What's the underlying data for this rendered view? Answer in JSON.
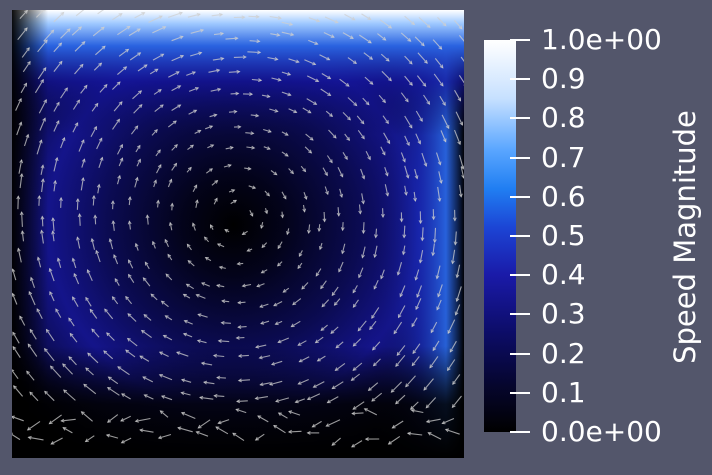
{
  "colors": {
    "background": "#53566b",
    "colormap": [
      "#000000",
      "#0a0a4e",
      "#1a1a96",
      "#1a4fd0",
      "#2a8af5",
      "#e0efff",
      "#ffffff"
    ],
    "glyph": "#cfcfcf"
  },
  "scalar_bar": {
    "title": "Speed Magnitude",
    "ticks": [
      {
        "value": 1.0,
        "label": "1.0e+00"
      },
      {
        "value": 0.9,
        "label": "0.9"
      },
      {
        "value": 0.8,
        "label": "0.8"
      },
      {
        "value": 0.7,
        "label": "0.7"
      },
      {
        "value": 0.6,
        "label": "0.6"
      },
      {
        "value": 0.5,
        "label": "0.5"
      },
      {
        "value": 0.4,
        "label": "0.4"
      },
      {
        "value": 0.3,
        "label": "0.3"
      },
      {
        "value": 0.2,
        "label": "0.2"
      },
      {
        "value": 0.1,
        "label": "0.1"
      },
      {
        "value": 0.0,
        "label": "0.0e+00"
      }
    ],
    "range": [
      0.0,
      1.0
    ]
  },
  "field": {
    "type": "lid-driven cavity velocity field with arrow glyphs",
    "vortex_center": "upper center"
  }
}
